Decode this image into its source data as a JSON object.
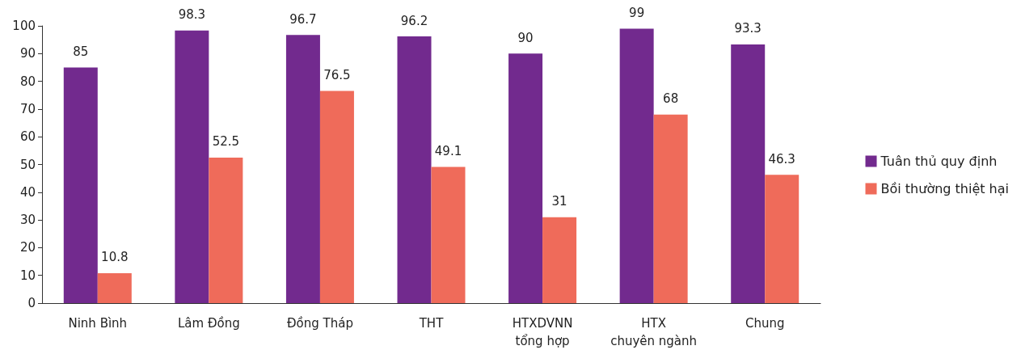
{
  "chart_data": {
    "type": "bar",
    "categories": [
      "Ninh Bình",
      "Lâm Đồng",
      "Đồng Tháp",
      "THT",
      "HTXDVNN\ntổng hợp",
      "HTX\nchuyên ngành",
      "Chung"
    ],
    "series": [
      {
        "name": "Tuân thủ quy định",
        "color": "#722a8e",
        "values": [
          85,
          98.3,
          96.7,
          96.2,
          90,
          99,
          93.3
        ]
      },
      {
        "name": "Bồi thường thiệt hại",
        "color": "#ef6b5a",
        "values": [
          10.8,
          52.5,
          76.5,
          49.1,
          31,
          68,
          46.3
        ]
      }
    ],
    "ylim": [
      0,
      100
    ],
    "yticks": [
      0,
      10,
      20,
      30,
      40,
      50,
      60,
      70,
      80,
      90,
      100
    ],
    "grid": false,
    "legend": "right",
    "data_labels": true
  }
}
